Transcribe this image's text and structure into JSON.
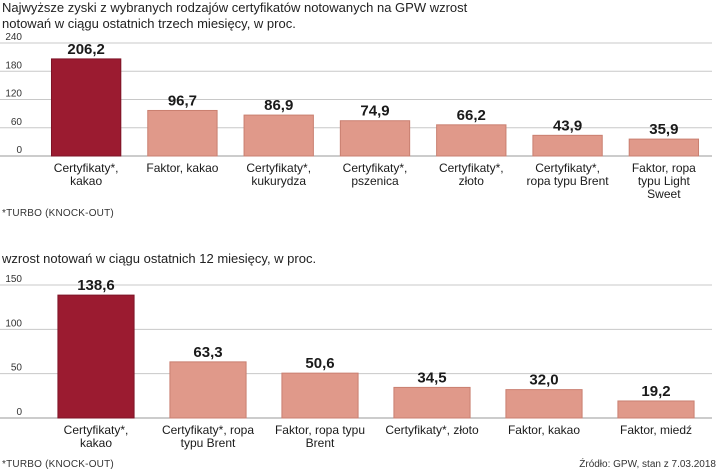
{
  "source": "Źródło: GPW, stan z 7.03.2018",
  "chart_data": [
    {
      "type": "bar",
      "title": "Najwyższe zyski z wybranych rodzajów certyfikatów notowanych na GPW wzrost notowań w ciągu ostatnich trzech miesięcy, w proc.",
      "footnote": "*TURBO (KNOCK-OUT)",
      "ylim": [
        0,
        240
      ],
      "yticks": [
        0,
        60,
        120,
        180,
        240
      ],
      "grid": true,
      "highlight_color": "#9b1b30",
      "bar_color": "#e0998a",
      "categories": [
        [
          "Certyfikaty*,",
          "kakao"
        ],
        [
          "Faktor, kakao"
        ],
        [
          "Certyfikaty*,",
          "kukurydza"
        ],
        [
          "Certyfikaty*,",
          "pszenica"
        ],
        [
          "Certyfikaty*,",
          "złoto"
        ],
        [
          "Certyfikaty*,",
          "ropa typu Brent"
        ],
        [
          "Faktor, ropa",
          "typu Light",
          "Sweet"
        ]
      ],
      "values": [
        206.2,
        96.7,
        86.9,
        74.9,
        66.2,
        43.9,
        35.9
      ],
      "labels": [
        "206,2",
        "96,7",
        "86,9",
        "74,9",
        "66,2",
        "43,9",
        "35,9"
      ]
    },
    {
      "type": "bar",
      "title": "wzrost notowań w ciągu ostatnich 12 miesięcy, w proc.",
      "footnote": "*TURBO (KNOCK-OUT)",
      "ylim": [
        0,
        150
      ],
      "yticks": [
        0,
        50,
        100,
        150
      ],
      "grid": true,
      "highlight_color": "#9b1b30",
      "bar_color": "#e0998a",
      "categories": [
        [
          "Certyfikaty*,",
          "kakao"
        ],
        [
          "Certyfikaty*, ropa",
          "typu Brent"
        ],
        [
          "Faktor, ropa typu",
          "Brent"
        ],
        [
          "Certyfikaty*, złoto"
        ],
        [
          "Faktor, kakao"
        ],
        [
          "Faktor, miedź"
        ]
      ],
      "values": [
        138.6,
        63.3,
        50.6,
        34.5,
        32.0,
        19.2
      ],
      "labels": [
        "138,6",
        "63,3",
        "50,6",
        "34,5",
        "32,0",
        "19,2"
      ]
    }
  ]
}
